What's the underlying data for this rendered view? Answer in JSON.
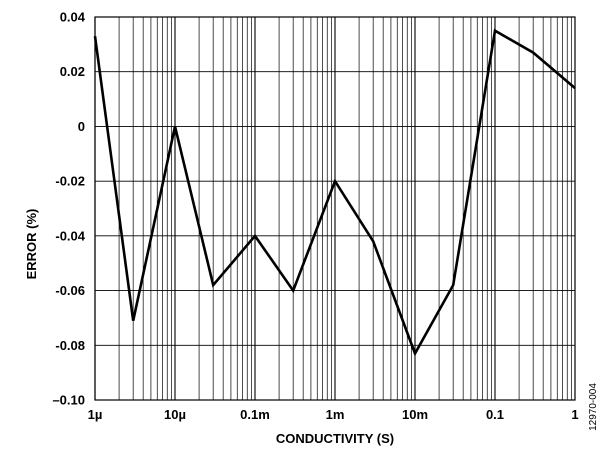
{
  "chart_data": {
    "type": "line",
    "x_scale": "log",
    "xlabel": "CONDUCTIVITY (S)",
    "ylabel": "ERROR (%)",
    "xlim": [
      1e-06,
      1
    ],
    "ylim": [
      -0.1,
      0.04
    ],
    "grid": true,
    "x_ticks": [
      {
        "value": 1e-06,
        "label": "1µ"
      },
      {
        "value": 1e-05,
        "label": "10µ"
      },
      {
        "value": 0.0001,
        "label": "0.1m"
      },
      {
        "value": 0.001,
        "label": "1m"
      },
      {
        "value": 0.01,
        "label": "10m"
      },
      {
        "value": 0.1,
        "label": "0.1"
      },
      {
        "value": 1,
        "label": "1"
      }
    ],
    "y_ticks": [
      {
        "value": 0.04,
        "label": "0.04"
      },
      {
        "value": 0.02,
        "label": "0.02"
      },
      {
        "value": 0,
        "label": "0"
      },
      {
        "value": -0.02,
        "label": "-0.02"
      },
      {
        "value": -0.04,
        "label": "-0.04"
      },
      {
        "value": -0.06,
        "label": "-0.06"
      },
      {
        "value": -0.08,
        "label": "-0.08"
      },
      {
        "value": -0.1,
        "label": "–0.10"
      }
    ],
    "series": [
      {
        "x": [
          1e-06,
          3e-06,
          1e-05,
          3e-05,
          0.0001,
          0.0003,
          0.001,
          0.003,
          0.01,
          0.03,
          0.1,
          0.3,
          1
        ],
        "y": [
          0.033,
          -0.071,
          0.0,
          -0.058,
          -0.04,
          -0.06,
          -0.02,
          -0.042,
          -0.083,
          -0.058,
          0.035,
          0.027,
          0.014
        ]
      }
    ],
    "figure_code": "12970-004"
  }
}
